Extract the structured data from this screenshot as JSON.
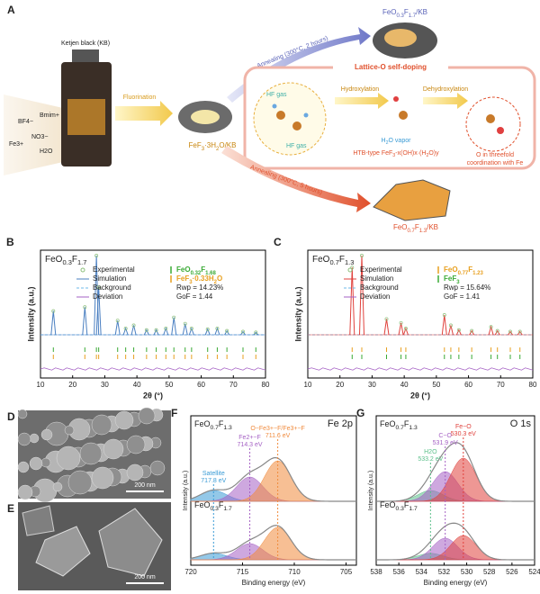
{
  "panels": {
    "A": {
      "label": "A",
      "kb_label": "Ketjen black (KB)",
      "reagents": [
        "BF4−",
        "Bmim+",
        "Fe3+",
        "NO3−",
        "H2O"
      ],
      "step_fluorination": "Fluorination",
      "intermediate": "FeF3·3H2O/KB",
      "route_top": "Annealing (300°C, 2 hours)",
      "product_top": "FeO0.3F1.7/KB",
      "box_title": "Lattice-O self-doping",
      "hf_gas_1": "HF gas",
      "hf_gas_2": "HF gas",
      "step_hydroxylation": "Hydroxylation",
      "step_dehydroxylation": "Dehydroxylation",
      "h2o_vapor": "H2O vapor",
      "htb": "HTB-type FeF3-x(OH)x·(H2O)y",
      "o_coord": [
        "O in threefold",
        "coordination with Fe"
      ],
      "route_bottom": "Annealing (300°C, 5 hours)",
      "product_bottom": "FeO0.7F1.3/KB"
    },
    "B": {
      "label": "B",
      "sample": "FeO0.3F1.7",
      "legend": [
        "Experimental",
        "Simulation",
        "Background",
        "Deviation"
      ],
      "simulation_color": "#4a7fc1",
      "phases": [
        {
          "name": "FeO0.32F1.68",
          "color": "#3aaa35"
        },
        {
          "name": "FeF3·0.33H2O",
          "color": "#e8a020"
        }
      ],
      "rwp": "Rwp = 14.23%",
      "gof": "GoF = 1.44",
      "ylabel": "Intensity (a.u.)",
      "xlabel": "2θ (°)",
      "xlim": [
        10,
        80
      ],
      "xticks": [
        10,
        20,
        30,
        40,
        50,
        60,
        70,
        80
      ],
      "peaks": {
        "x": [
          14,
          23.8,
          27.4,
          28.1,
          34,
          36.5,
          39,
          43,
          46,
          49,
          51.5,
          55,
          57,
          62,
          65,
          68,
          73,
          77
        ],
        "height": [
          30,
          35,
          100,
          60,
          18,
          8,
          12,
          6,
          6,
          8,
          22,
          14,
          8,
          7,
          8,
          5,
          4,
          3
        ]
      }
    },
    "C": {
      "label": "C",
      "sample": "FeO0.7F1.3",
      "legend": [
        "Experimental",
        "Simulation",
        "Background",
        "Deviation"
      ],
      "simulation_color": "#e0413c",
      "phases": [
        {
          "name": "FeO0.77F1.23",
          "color": "#e8a020"
        },
        {
          "name": "FeF3",
          "color": "#3aaa35"
        }
      ],
      "rwp": "Rwp = 15.64%",
      "gof": "GoF = 1.41",
      "ylabel": "Intensity (a.u.)",
      "xlabel": "2θ (°)",
      "xlim": [
        10,
        80
      ],
      "xticks": [
        10,
        20,
        30,
        40,
        50,
        60,
        70,
        80
      ],
      "peaks": {
        "x": [
          23.8,
          26.8,
          34.5,
          39,
          40.5,
          52.5,
          54.5,
          57,
          61,
          67,
          69,
          73,
          76
        ],
        "height": [
          85,
          100,
          20,
          15,
          8,
          25,
          12,
          6,
          5,
          10,
          5,
          4,
          4
        ]
      }
    },
    "D": {
      "label": "D",
      "scale": "200 nm"
    },
    "E": {
      "label": "E",
      "scale": "200 nm"
    },
    "F": {
      "label": "F",
      "title": "Fe 2p",
      "ylabel": "Intensity (a.u.)",
      "xlabel": "Binding energy (eV)",
      "xlim": [
        720,
        704
      ],
      "xticks": [
        720,
        715,
        710,
        705
      ],
      "peaks": [
        {
          "name": "Satellite",
          "center": {
            "value": 717.8,
            "label": "717.8 eV"
          },
          "color": "#3a9bd5"
        },
        {
          "name": "Fe2+−F",
          "center": {
            "value": 714.3,
            "label": "714.3 eV"
          },
          "color": "#a561c4"
        },
        {
          "name": "O−Fe3+−F/Fe3+−F",
          "center": {
            "value": 711.6,
            "label": "711.6 eV"
          },
          "color": "#f08a3c"
        }
      ],
      "spectra": [
        {
          "sample": "FeO0.7F1.3",
          "heights": [
            0.2,
            0.45,
            0.75
          ]
        },
        {
          "sample": "FeO0.3F1.7",
          "heights": [
            0.12,
            0.3,
            0.6
          ]
        }
      ]
    },
    "G": {
      "label": "G",
      "title": "O 1s",
      "ylabel": "Intensity (a.u.)",
      "xlabel": "Binding energy (eV)",
      "xlim": [
        538,
        524
      ],
      "xticks": [
        538,
        536,
        534,
        532,
        530,
        528,
        526,
        524
      ],
      "peaks": [
        {
          "name": "H2O",
          "center": {
            "value": 533.2,
            "label": "533.2 eV"
          },
          "color": "#5bbf8a"
        },
        {
          "name": "C−O",
          "center": {
            "value": 531.9,
            "label": "531.9 eV"
          },
          "color": "#a561c4"
        },
        {
          "name": "Fe−O",
          "center": {
            "value": 530.3,
            "label": "530.3 eV"
          },
          "color": "#e0413c"
        }
      ],
      "spectra": [
        {
          "sample": "FeO0.7F1.3",
          "heights": [
            0.2,
            0.55,
            0.8
          ]
        },
        {
          "sample": "FeO0.3F1.7",
          "heights": [
            0.12,
            0.4,
            0.45
          ]
        }
      ]
    }
  }
}
